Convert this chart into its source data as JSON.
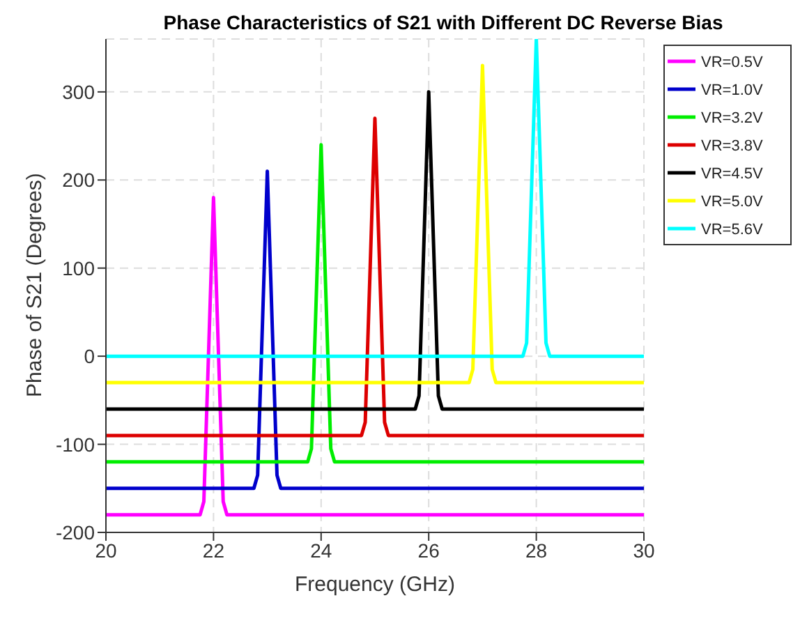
{
  "chart_data": {
    "type": "line",
    "title": "Phase Characteristics of S21 with Different DC Reverse Bias",
    "xlabel": "Frequency (GHz)",
    "ylabel": "Phase of S21 (Degrees)",
    "xlim": [
      20,
      30
    ],
    "xticks": [
      20,
      22,
      24,
      26,
      28,
      30
    ],
    "ylim": [
      -200,
      360
    ],
    "yticks": [
      -200,
      -100,
      0,
      100,
      200,
      300
    ],
    "grid": true,
    "legend": "top right",
    "line_style": "solid",
    "marker": "none",
    "series": [
      {
        "name": "VR=0.5V",
        "color": "#ff00ff",
        "x": [
          20,
          21.75,
          21.82,
          22,
          22.18,
          22.25,
          30
        ],
        "values": [
          -180,
          -180,
          -165,
          180,
          -165,
          -180,
          -180
        ]
      },
      {
        "name": "VR=1.0V",
        "color": "#0000cc",
        "x": [
          20,
          22.75,
          22.82,
          23,
          23.18,
          23.25,
          30
        ],
        "values": [
          -150,
          -150,
          -135,
          210,
          -135,
          -150,
          -150
        ]
      },
      {
        "name": "VR=3.2V",
        "color": "#00ee00",
        "x": [
          20,
          23.75,
          23.82,
          24,
          24.18,
          24.25,
          30
        ],
        "values": [
          -120,
          -120,
          -105,
          240,
          -105,
          -120,
          -120
        ]
      },
      {
        "name": "VR=3.8V",
        "color": "#dd0000",
        "x": [
          20,
          24.75,
          24.82,
          25,
          25.18,
          25.25,
          30
        ],
        "values": [
          -90,
          -90,
          -75,
          270,
          -75,
          -90,
          -90
        ]
      },
      {
        "name": "VR=4.5V",
        "color": "#000000",
        "x": [
          20,
          25.75,
          25.82,
          26,
          26.18,
          26.25,
          30
        ],
        "values": [
          -60,
          -60,
          -45,
          300,
          -45,
          -60,
          -60
        ]
      },
      {
        "name": "VR=5.0V",
        "color": "#ffff00",
        "x": [
          20,
          26.75,
          26.82,
          27,
          27.18,
          27.25,
          30
        ],
        "values": [
          -30,
          -30,
          -15,
          330,
          -15,
          -30,
          -30
        ]
      },
      {
        "name": "VR=5.6V",
        "color": "#00ffff",
        "x": [
          20,
          27.75,
          27.82,
          28,
          28.18,
          28.25,
          30
        ],
        "values": [
          0,
          0,
          15,
          360,
          15,
          0,
          0
        ]
      }
    ]
  }
}
